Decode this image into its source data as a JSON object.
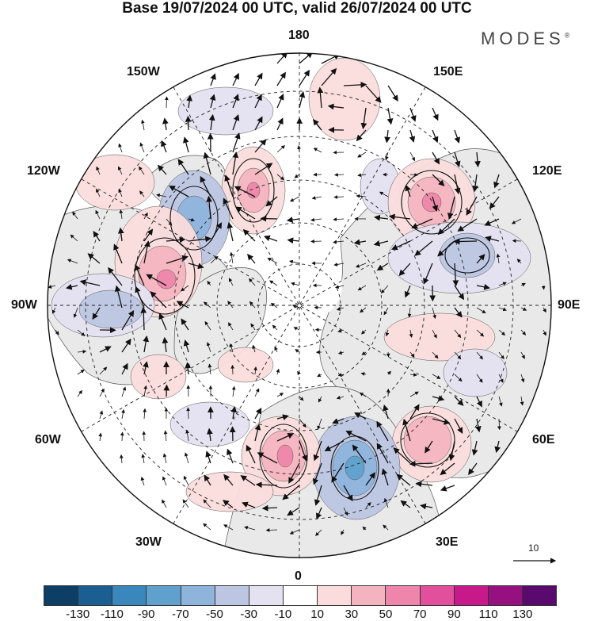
{
  "title": "Base 19/07/2024 00 UTC, valid 26/07/2024 00 UTC",
  "brand": "MODES",
  "brand_mark": "®",
  "projection": "north polar stereographic",
  "longitude_labels": {
    "top": "180",
    "bottom": "0",
    "left": "90W",
    "right": "90E",
    "upper_left": "150W",
    "upper_right": "150E",
    "mid_left_upper": "120W",
    "mid_right_upper": "120E",
    "mid_left_lower": "60W",
    "mid_right_lower": "60E",
    "lower_left": "30W",
    "lower_right": "30E"
  },
  "reference_vector": {
    "label": "10"
  },
  "colorbar": {
    "ticks": [
      "-130",
      "-110",
      "-90",
      "-70",
      "-50",
      "-30",
      "-10",
      "10",
      "30",
      "50",
      "70",
      "90",
      "110",
      "130"
    ],
    "colors": [
      "#0d3f66",
      "#1b5e91",
      "#3a87bd",
      "#5fa1cc",
      "#8fb4dc",
      "#bcc6e2",
      "#e4e2f0",
      "#ffffff",
      "#fbdcdc",
      "#f4b4bf",
      "#ee86ab",
      "#e14f9d",
      "#c7198a",
      "#971080",
      "#5a0a6e"
    ]
  },
  "map_colors": {
    "land": "#e9e9e9",
    "coast": "#555555",
    "grid": "#222222",
    "vector": "#111111",
    "contour": "#111111"
  },
  "anomaly_features": [
    {
      "sign": "positive",
      "level": "50",
      "region": "near 150E 70N"
    },
    {
      "sign": "positive",
      "level": "70",
      "region": "near 100W 60N"
    },
    {
      "sign": "positive",
      "level": "70",
      "region": "near 10W 55N"
    },
    {
      "sign": "positive",
      "level": "70",
      "region": "near 165W 65N"
    },
    {
      "sign": "positive",
      "level": "70",
      "region": "near 115E 60N"
    },
    {
      "sign": "positive",
      "level": "50",
      "region": "near 45E 55N"
    },
    {
      "sign": "negative",
      "level": "-70",
      "region": "near 130W 60N"
    },
    {
      "sign": "negative",
      "level": "-90",
      "region": "near 15E 55N"
    },
    {
      "sign": "negative",
      "level": "-50",
      "region": "near 100E 55N"
    }
  ]
}
